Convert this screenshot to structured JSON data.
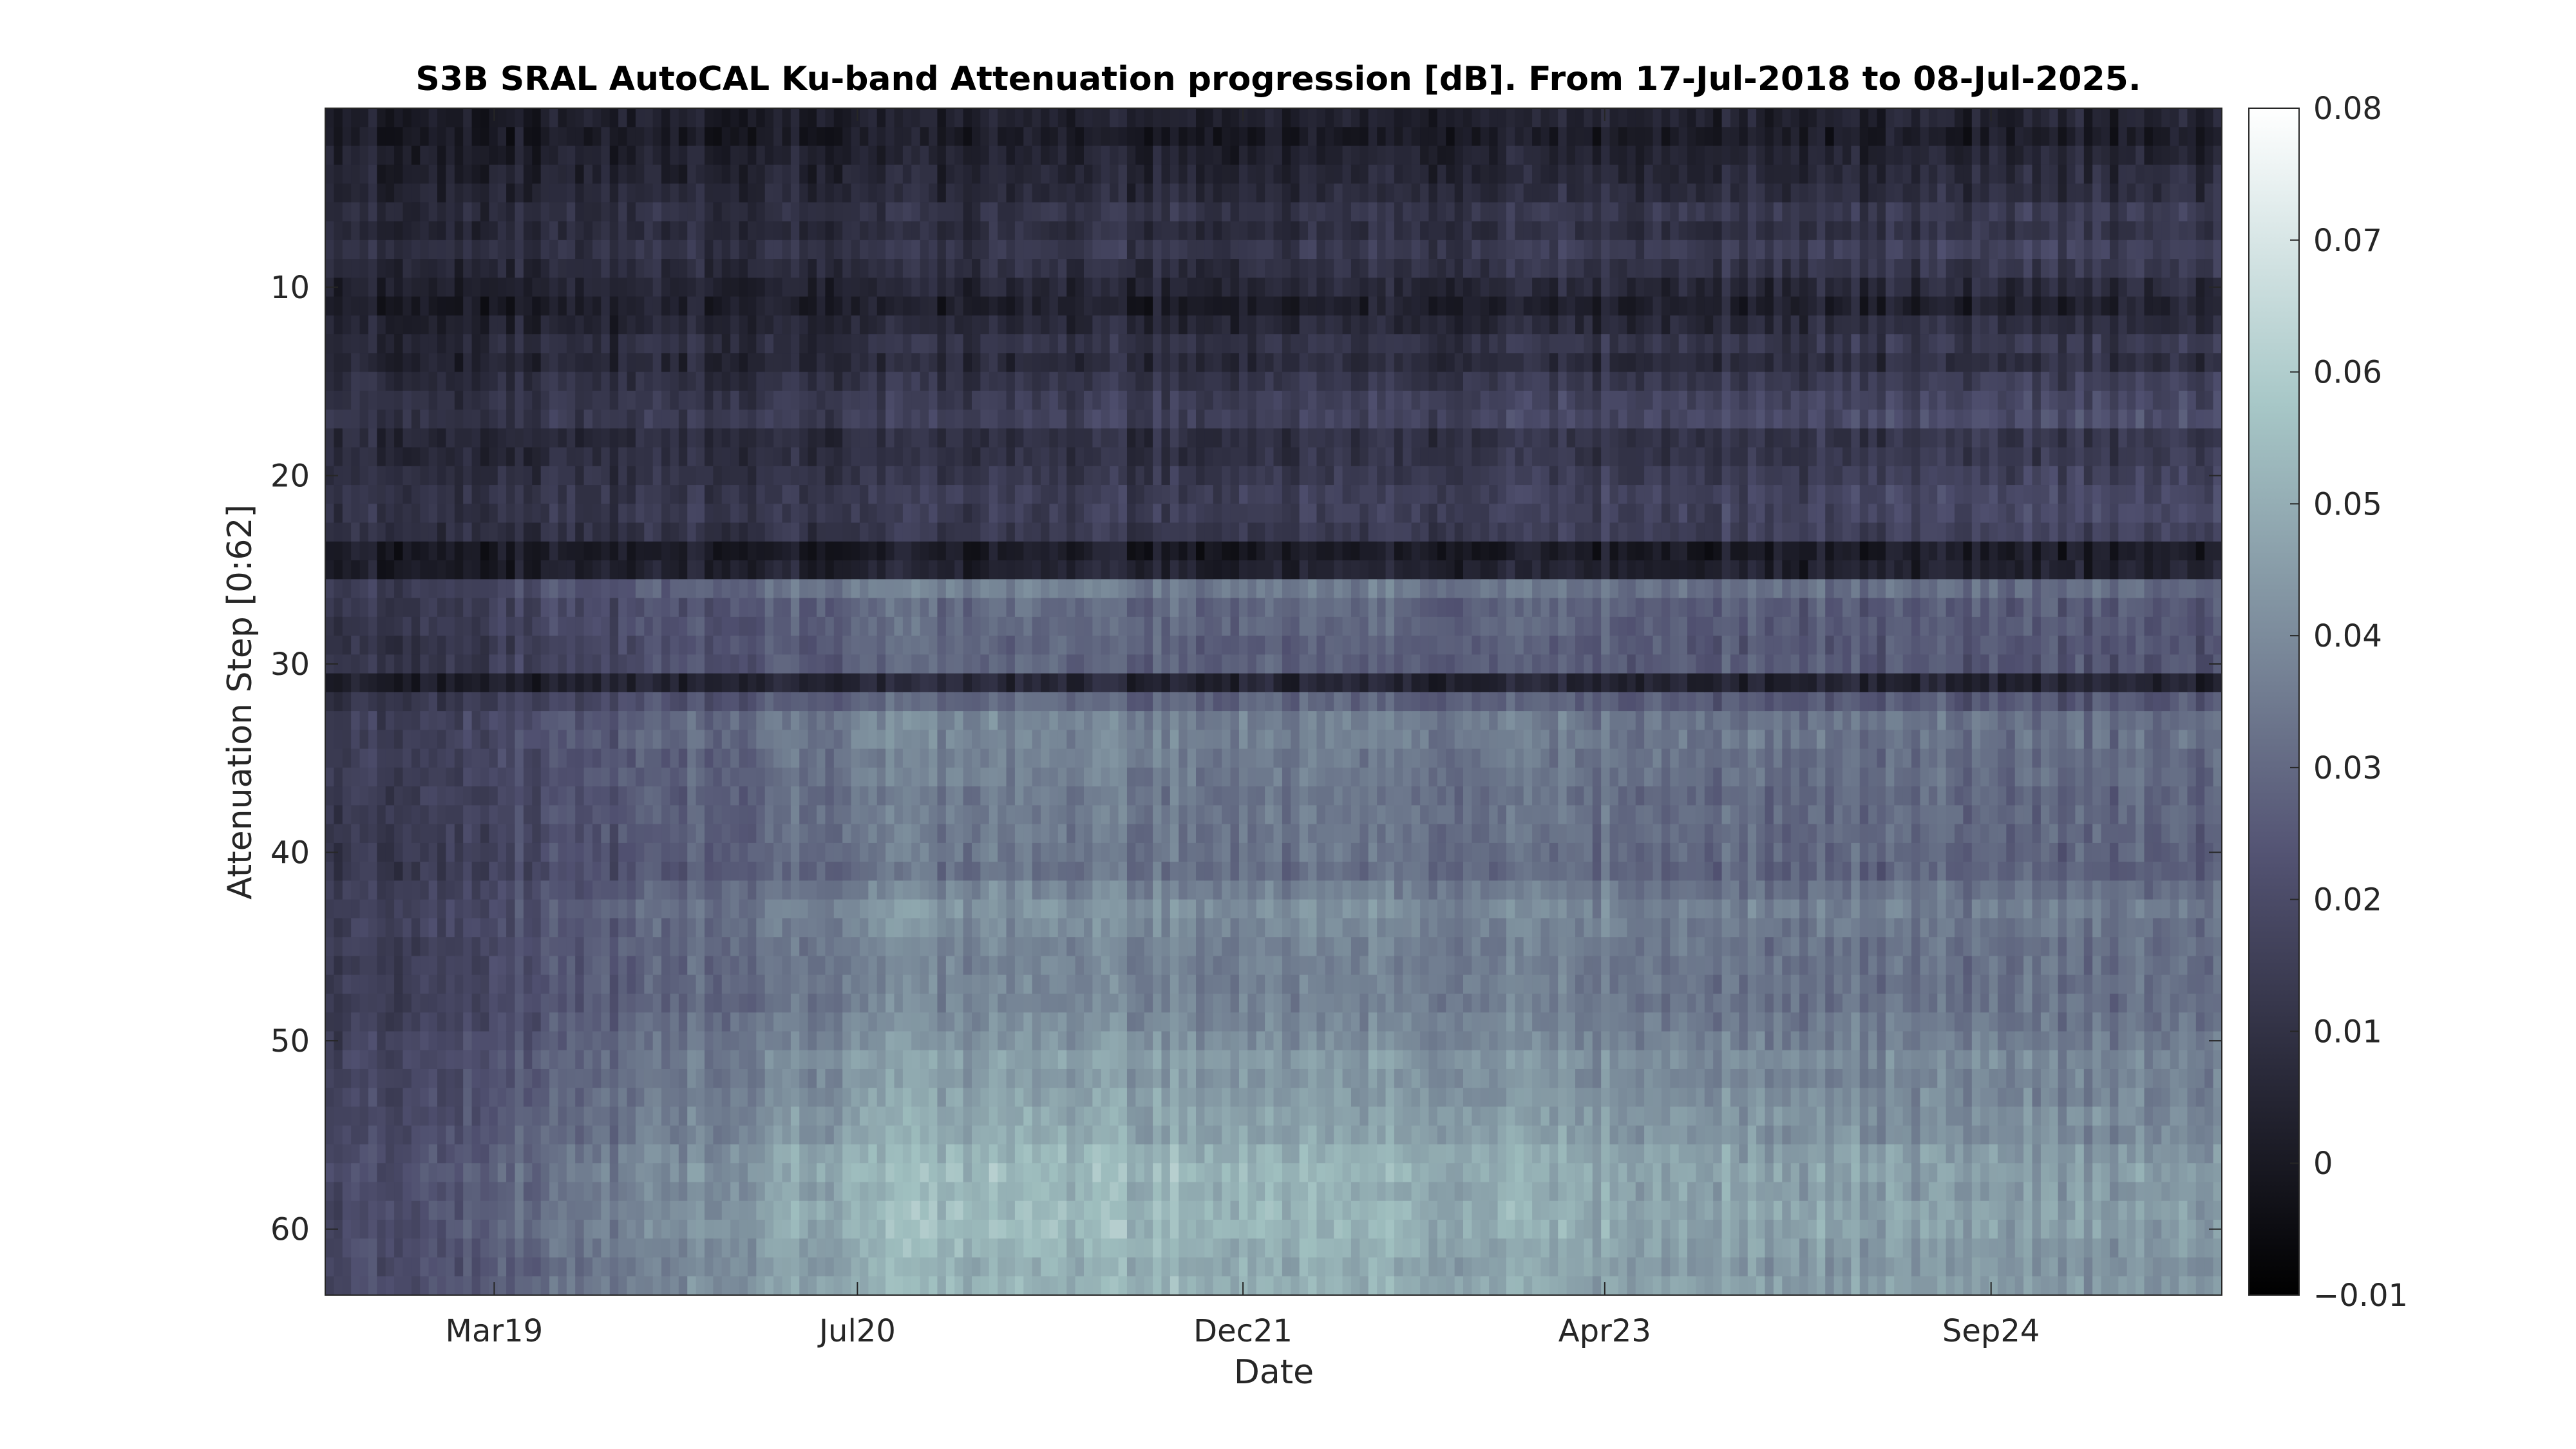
{
  "chart_data": {
    "type": "heatmap",
    "title": "S3B SRAL AutoCAL Ku-band Attenuation progression [dB]. From 17-Jul-2018 to 08-Jul-2025.",
    "xlabel": "Date",
    "ylabel": "Attenuation Step [0:62]",
    "x_range": [
      "2018-07-17",
      "2025-07-08"
    ],
    "x_ticks": [
      {
        "label": "Mar19",
        "date": "2019-03-01"
      },
      {
        "label": "Jul20",
        "date": "2020-07-01"
      },
      {
        "label": "Dec21",
        "date": "2021-12-01"
      },
      {
        "label": "Apr23",
        "date": "2023-04-01"
      },
      {
        "label": "Sep24",
        "date": "2024-09-01"
      }
    ],
    "y_range": [
      0.5,
      63.5
    ],
    "y_reversed": true,
    "y_ticks": [
      10,
      20,
      30,
      40,
      50,
      60
    ],
    "steps": 63,
    "colormap": "bone",
    "colorbar": {
      "range": [
        -0.01,
        0.08
      ],
      "ticks": [
        -0.01,
        0,
        0.01,
        0.02,
        0.03,
        0.04,
        0.05,
        0.06,
        0.07,
        0.08
      ]
    },
    "value_profile_by_step": [
      0.005,
      0.002,
      0.006,
      0.008,
      0.01,
      0.015,
      0.012,
      0.017,
      0.013,
      0.008,
      0.004,
      0.009,
      0.014,
      0.01,
      0.016,
      0.02,
      0.022,
      0.013,
      0.014,
      0.017,
      0.02,
      0.02,
      0.018,
      0.002,
      0.005,
      0.038,
      0.032,
      0.032,
      0.03,
      0.03,
      0.006,
      0.031,
      0.04,
      0.04,
      0.038,
      0.038,
      0.036,
      0.037,
      0.036,
      0.036,
      0.034,
      0.04,
      0.044,
      0.042,
      0.04,
      0.04,
      0.04,
      0.04,
      0.042,
      0.044,
      0.048,
      0.046,
      0.048,
      0.05,
      0.05,
      0.054,
      0.056,
      0.054,
      0.056,
      0.056,
      0.054,
      0.052,
      0.054
    ],
    "grid": false,
    "legend": "colorbar-right"
  }
}
